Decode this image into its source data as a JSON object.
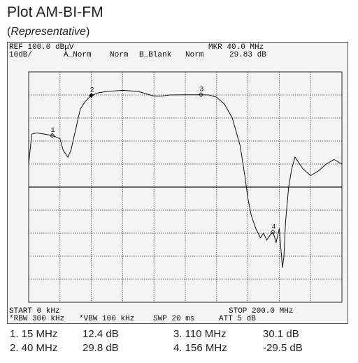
{
  "page": {
    "title": "Plot AM-BI-FM",
    "subtitle_open": "(",
    "subtitle_italic": "Representative",
    "subtitle_close": ")"
  },
  "analyzer": {
    "ref_level": "REF 100.0 dBμV",
    "scale": "10dB/",
    "trace_a": "A_Norm",
    "trace_a_mode": "Norm",
    "trace_b": "B_Blank",
    "trace_b_mode": "Norm",
    "marker_freq": "MKR 40.0 MHz",
    "marker_level": "29.83 dB",
    "start": "START 0 kHz",
    "stop": "STOP 200.0 MHz",
    "rbw": "*RBW 300 kHz",
    "vbw": "*VBW 100 kHz",
    "sweep": "SWP 20 ms",
    "att": "ATT 5 dB"
  },
  "markers": [
    {
      "id": "1",
      "freq": "1. 15 MHz",
      "level": "12.4 dB"
    },
    {
      "id": "2",
      "freq": "2. 40 MHz",
      "level": "29.8 dB"
    },
    {
      "id": "3",
      "freq": "3. 110 MHz",
      "level": "30.1 dB"
    },
    {
      "id": "4",
      "freq": "4. 156 MHz",
      "level": "-29.5 dB"
    }
  ],
  "chart_data": {
    "type": "line",
    "x_unit": "MHz",
    "y_unit": "dB",
    "xlim": [
      0,
      200
    ],
    "ylim": [
      -60,
      40
    ],
    "grid": true,
    "series": [
      {
        "x": [
          0,
          2,
          5,
          10,
          15,
          20,
          22,
          25,
          27,
          30,
          33,
          36,
          38,
          40,
          45,
          50,
          60,
          70,
          80,
          85,
          90,
          100,
          110,
          115,
          120,
          125,
          130,
          135,
          138,
          140,
          142,
          145,
          148,
          150,
          152,
          154,
          156,
          158,
          160,
          162,
          163,
          164,
          166,
          168,
          170,
          175,
          180,
          185,
          190,
          195,
          200
        ],
        "y": [
          0,
          13,
          13.5,
          13,
          12.4,
          11,
          6,
          3,
          6,
          15,
          24,
          27,
          28.5,
          29.8,
          31,
          31.5,
          32,
          31.5,
          29.5,
          29.5,
          30,
          30.1,
          30.1,
          30,
          29,
          26,
          20,
          8,
          -5,
          -15,
          -22,
          -28,
          -32,
          -30,
          -33,
          -31,
          -29.5,
          -34,
          -28,
          -45,
          -40,
          -25,
          -10,
          -2,
          3,
          -2,
          -5,
          -3,
          0,
          2,
          0
        ]
      }
    ],
    "marker_points": [
      {
        "label": "1",
        "x": 15,
        "y": 12.4
      },
      {
        "label": "2",
        "x": 40,
        "y": 29.8
      },
      {
        "label": "3",
        "x": 110,
        "y": 30.1
      },
      {
        "label": "4",
        "x": 156,
        "y": -29.5
      }
    ]
  }
}
